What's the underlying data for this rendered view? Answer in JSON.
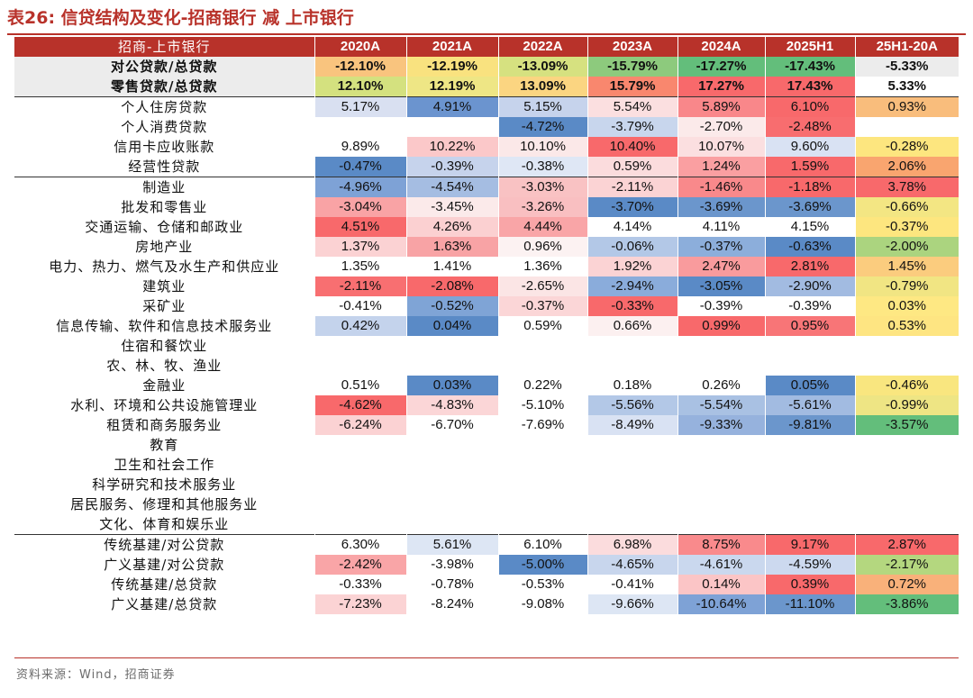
{
  "title": "表26:  信贷结构及变化-招商银行 减 上市银行",
  "source": "资料来源：Wind，招商证券",
  "table": {
    "headers": [
      "招商-上市银行",
      "2020A",
      "2021A",
      "2022A",
      "2023A",
      "2024A",
      "2025H1",
      "25H1-20A"
    ],
    "rows": [
      {
        "label": "对公贷款/总贷款",
        "values": [
          "-12.10%",
          "-12.19%",
          "-13.09%",
          "-15.79%",
          "-17.27%",
          "-17.43%",
          "-5.33%"
        ],
        "colors": [
          "#f9c47e",
          "#f9e27f",
          "#d6e180",
          "#8dca7d",
          "#63be7b",
          "#63be7b",
          "#ececec"
        ],
        "bold": true,
        "shade": true
      },
      {
        "label": "零售贷款/总贷款",
        "values": [
          "12.10%",
          "12.19%",
          "13.09%",
          "15.79%",
          "17.27%",
          "17.43%",
          "5.33%"
        ],
        "colors": [
          "#d4e17f",
          "#eee685",
          "#fbd581",
          "#f9876e",
          "#f8696b",
          "#f8696b",
          "#ffffff"
        ],
        "bold": true,
        "shade": true
      },
      {
        "label": "个人住房贷款",
        "values": [
          "5.17%",
          "4.91%",
          "5.15%",
          "5.54%",
          "5.89%",
          "6.10%",
          "0.93%"
        ],
        "colors": [
          "#d9e0f1",
          "#6b94cf",
          "#c6d3ec",
          "#fbdfe0",
          "#f9878a",
          "#f8696b",
          "#f9bd7c"
        ],
        "sep": true
      },
      {
        "label": "个人消费贷款",
        "values": [
          "",
          "",
          "-4.72%",
          "-3.79%",
          "-2.70%",
          "-2.48%",
          ""
        ],
        "colors": [
          "#ffffff",
          "#ffffff",
          "#5a8ac6",
          "#c8d6ed",
          "#fbeaea",
          "#f86d6f",
          "#ffffff"
        ]
      },
      {
        "label": "信用卡应收账款",
        "values": [
          "9.89%",
          "10.22%",
          "10.10%",
          "10.40%",
          "10.07%",
          "9.60%",
          "-0.28%"
        ],
        "colors": [
          "#ffffff",
          "#fbc8c9",
          "#fbe8e8",
          "#f8696b",
          "#fbdfe0",
          "#d9e2f3",
          "#fde67f"
        ]
      },
      {
        "label": "经营性贷款",
        "values": [
          "-0.47%",
          "-0.39%",
          "-0.38%",
          "0.59%",
          "1.24%",
          "1.59%",
          "2.06%"
        ],
        "colors": [
          "#5a8ac6",
          "#c6d3ec",
          "#dfe7f5",
          "#fbdcdd",
          "#fa9fa1",
          "#f8696b",
          "#f9a56f"
        ]
      },
      {
        "label": "制造业",
        "values": [
          "-4.96%",
          "-4.54%",
          "-3.03%",
          "-2.11%",
          "-1.46%",
          "-1.18%",
          "3.78%"
        ],
        "colors": [
          "#7ea2d6",
          "#a5bde2",
          "#f9c2c3",
          "#fbd3d4",
          "#f9898b",
          "#f8696b",
          "#f8696b"
        ],
        "sep": true
      },
      {
        "label": "批发和零售业",
        "values": [
          "-3.04%",
          "-3.45%",
          "-3.26%",
          "-3.70%",
          "-3.69%",
          "-3.69%",
          "-0.66%"
        ],
        "colors": [
          "#f9a3a5",
          "#fbeaea",
          "#f9bfc1",
          "#5a8ac6",
          "#6b96cc",
          "#6b96cc",
          "#f3e683"
        ]
      },
      {
        "label": "交通运输、仓储和邮政业",
        "values": [
          "4.51%",
          "4.26%",
          "4.44%",
          "4.14%",
          "4.11%",
          "4.15%",
          "-0.37%"
        ],
        "colors": [
          "#f8696b",
          "#fbd0d1",
          "#f9a5a7",
          "#ffffff",
          "#ffffff",
          "#ffffff",
          "#fde67f"
        ]
      },
      {
        "label": "房地产业",
        "values": [
          "1.37%",
          "1.63%",
          "0.96%",
          "-0.06%",
          "-0.37%",
          "-0.63%",
          "-2.00%"
        ],
        "colors": [
          "#fbd2d3",
          "#f8a3a5",
          "#fcf2f2",
          "#b3c8e7",
          "#8caedb",
          "#5a8ac6",
          "#abd47f"
        ]
      },
      {
        "label": "电力、热力、燃气及水生产和供应业",
        "values": [
          "1.35%",
          "1.41%",
          "1.36%",
          "1.92%",
          "2.47%",
          "2.81%",
          "1.45%"
        ],
        "colors": [
          "#ffffff",
          "#ffffff",
          "#ffffff",
          "#fbd3d4",
          "#f99b9d",
          "#f8696b",
          "#fbcc7e"
        ]
      },
      {
        "label": "建筑业",
        "values": [
          "-2.11%",
          "-2.08%",
          "-2.65%",
          "-2.94%",
          "-3.05%",
          "-2.90%",
          "-0.79%"
        ],
        "colors": [
          "#f86f71",
          "#f8696b",
          "#fbe5e5",
          "#8aacdb",
          "#5a8ac6",
          "#a2bbe1",
          "#f1e583"
        ]
      },
      {
        "label": "采矿业",
        "values": [
          "-0.41%",
          "-0.52%",
          "-0.37%",
          "-0.33%",
          "-0.39%",
          "-0.39%",
          "0.03%"
        ],
        "colors": [
          "#ffffff",
          "#7fa4d6",
          "#fbd6d7",
          "#f8696b",
          "#ffffff",
          "#ffffff",
          "#fee883"
        ]
      },
      {
        "label": "信息传输、软件和信息技术服务业",
        "values": [
          "0.42%",
          "0.04%",
          "0.59%",
          "0.66%",
          "0.99%",
          "0.95%",
          "0.53%"
        ],
        "colors": [
          "#c4d3ec",
          "#5a8ac6",
          "#ffffff",
          "#fcf0f0",
          "#f8696b",
          "#f87577",
          "#fee582"
        ]
      },
      {
        "label": "住宿和餐饮业",
        "values": [
          "",
          "",
          "",
          "",
          "",
          "",
          ""
        ],
        "colors": [
          "#ffffff",
          "#ffffff",
          "#ffffff",
          "#ffffff",
          "#ffffff",
          "#ffffff",
          "#ffffff"
        ]
      },
      {
        "label": "农、林、牧、渔业",
        "values": [
          "",
          "",
          "",
          "",
          "",
          "",
          ""
        ],
        "colors": [
          "#ffffff",
          "#ffffff",
          "#ffffff",
          "#ffffff",
          "#ffffff",
          "#ffffff",
          "#ffffff"
        ]
      },
      {
        "label": "金融业",
        "values": [
          "0.51%",
          "0.03%",
          "0.22%",
          "0.18%",
          "0.26%",
          "0.05%",
          "-0.46%"
        ],
        "colors": [
          "#ffffff",
          "#5a8ac6",
          "#ffffff",
          "#ffffff",
          "#ffffff",
          "#5a8ac6",
          "#f9e67f"
        ]
      },
      {
        "label": "水利、环境和公共设施管理业",
        "values": [
          "-4.62%",
          "-4.83%",
          "-5.10%",
          "-5.56%",
          "-5.54%",
          "-5.61%",
          "-0.99%"
        ],
        "colors": [
          "#f8696b",
          "#fbd6d7",
          "#ffffff",
          "#b3c8e7",
          "#a9c1e3",
          "#a2bbe1",
          "#eee584"
        ]
      },
      {
        "label": "租赁和商务服务业",
        "values": [
          "-6.24%",
          "-6.70%",
          "-7.69%",
          "-8.49%",
          "-9.33%",
          "-9.81%",
          "-3.57%"
        ],
        "colors": [
          "#fbd2d3",
          "#ffffff",
          "#ffffff",
          "#d9e2f3",
          "#96b2dd",
          "#6b96cc",
          "#63be7b"
        ]
      },
      {
        "label": "教育",
        "values": [
          "",
          "",
          "",
          "",
          "",
          "",
          ""
        ],
        "colors": [
          "#ffffff",
          "#ffffff",
          "#ffffff",
          "#ffffff",
          "#ffffff",
          "#ffffff",
          "#ffffff"
        ]
      },
      {
        "label": "卫生和社会工作",
        "values": [
          "",
          "",
          "",
          "",
          "",
          "",
          ""
        ],
        "colors": [
          "#ffffff",
          "#ffffff",
          "#ffffff",
          "#ffffff",
          "#ffffff",
          "#ffffff",
          "#ffffff"
        ]
      },
      {
        "label": "科学研究和技术服务业",
        "values": [
          "",
          "",
          "",
          "",
          "",
          "",
          ""
        ],
        "colors": [
          "#ffffff",
          "#ffffff",
          "#ffffff",
          "#ffffff",
          "#ffffff",
          "#ffffff",
          "#ffffff"
        ]
      },
      {
        "label": "居民服务、修理和其他服务业",
        "values": [
          "",
          "",
          "",
          "",
          "",
          "",
          ""
        ],
        "colors": [
          "#ffffff",
          "#ffffff",
          "#ffffff",
          "#ffffff",
          "#ffffff",
          "#ffffff",
          "#ffffff"
        ]
      },
      {
        "label": "文化、体育和娱乐业",
        "values": [
          "",
          "",
          "",
          "",
          "",
          "",
          ""
        ],
        "colors": [
          "#ffffff",
          "#ffffff",
          "#ffffff",
          "#ffffff",
          "#ffffff",
          "#ffffff",
          "#ffffff"
        ]
      },
      {
        "label": "传统基建/对公贷款",
        "values": [
          "6.30%",
          "5.61%",
          "6.10%",
          "6.98%",
          "8.75%",
          "9.17%",
          "2.87%"
        ],
        "colors": [
          "#ffffff",
          "#dde6f4",
          "#ffffff",
          "#fbdcdd",
          "#f98a8c",
          "#f8696b",
          "#f8696b"
        ],
        "sep": true
      },
      {
        "label": "广义基建/对公贷款",
        "values": [
          "-2.42%",
          "-3.98%",
          "-5.00%",
          "-4.65%",
          "-4.61%",
          "-4.59%",
          "-2.17%"
        ],
        "colors": [
          "#f9a5a7",
          "#ffffff",
          "#5a8ac6",
          "#c8d6ed",
          "#cad8ee",
          "#ccd9ef",
          "#b4d77f"
        ]
      },
      {
        "label": "传统基建/总贷款",
        "values": [
          "-0.33%",
          "-0.78%",
          "-0.53%",
          "-0.41%",
          "0.14%",
          "0.39%",
          "0.72%"
        ],
        "colors": [
          "#ffffff",
          "#ffffff",
          "#ffffff",
          "#ffffff",
          "#fbc5c6",
          "#f8696b",
          "#f9b17a"
        ]
      },
      {
        "label": "广义基建/总贷款",
        "values": [
          "-7.23%",
          "-8.24%",
          "-9.08%",
          "-9.66%",
          "-10.64%",
          "-11.10%",
          "-3.86%"
        ],
        "colors": [
          "#fbd3d4",
          "#ffffff",
          "#ffffff",
          "#dde6f4",
          "#7ea2d6",
          "#6b96cc",
          "#63be7b"
        ]
      }
    ]
  }
}
